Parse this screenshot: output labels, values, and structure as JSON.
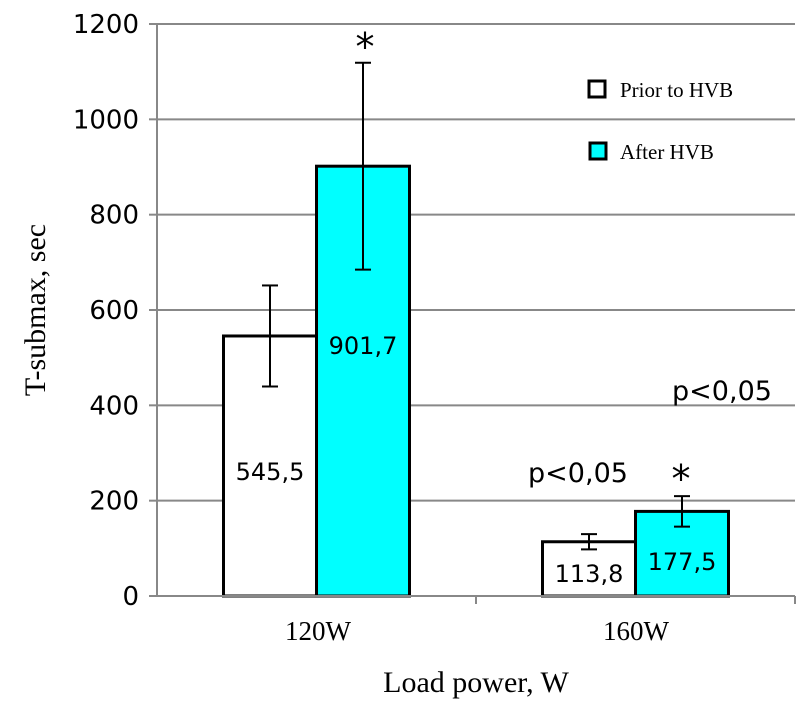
{
  "chart_data": {
    "type": "bar",
    "title": "",
    "xlabel": "Load power, W",
    "ylabel": "T-submax, sec",
    "ylim": [
      0,
      1200
    ],
    "yticks": [
      0,
      200,
      400,
      600,
      800,
      1000,
      1200
    ],
    "grid": true,
    "legend_position": "top-right",
    "categories": [
      "120W",
      "160W"
    ],
    "series": [
      {
        "name": "Prior to HVB",
        "color": "#ffffff",
        "values": [
          545.5,
          113.8
        ],
        "labels": [
          "545,5",
          "113,8"
        ],
        "errors": [
          106,
          16
        ]
      },
      {
        "name": "After HVB",
        "color": "#00ffff",
        "values": [
          901.7,
          177.5
        ],
        "labels": [
          "901,7",
          "177,5"
        ],
        "errors": [
          217,
          32
        ]
      }
    ],
    "annotations": {
      "star_120": "*",
      "star_160": "*",
      "p_160_prior": "p<0,05",
      "p_160_after": "p<0,05"
    }
  }
}
